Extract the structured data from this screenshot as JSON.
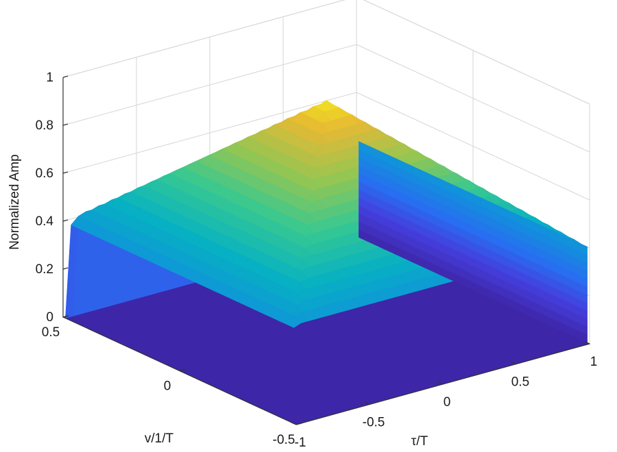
{
  "chart_data": {
    "type": "surface3d",
    "title": "",
    "zlabel": "Normalized Amp",
    "xlabel": "τ/T",
    "ylabel": "v/1/T",
    "xlim": [
      -1,
      1
    ],
    "ylim": [
      -0.5,
      0.5
    ],
    "zlim": [
      0,
      1
    ],
    "x_ticks": [
      -1,
      -0.5,
      0,
      0.5,
      1
    ],
    "x_tick_labels": [
      "-1",
      "-0.5",
      "0",
      "0.5",
      "1"
    ],
    "y_ticks": [
      -0.5,
      0,
      0.5
    ],
    "y_tick_labels": [
      "-0.5",
      "0",
      "0.5"
    ],
    "z_ticks": [
      0,
      0.2,
      0.4,
      0.6,
      0.8,
      1
    ],
    "z_tick_labels": [
      "0",
      "0.2",
      "0.4",
      "0.6",
      "0.8",
      "1"
    ],
    "surface": {
      "description_function": "1 - |tau|/T over |tau|<=T, nonzero band in v",
      "peak": {
        "x": 0,
        "y": 0,
        "z": 0.96
      },
      "edge_height_at_x_minus_1": 0.4,
      "edge_height_at_x_plus_1": 0.4,
      "colormap": "parula"
    },
    "grid": true
  }
}
